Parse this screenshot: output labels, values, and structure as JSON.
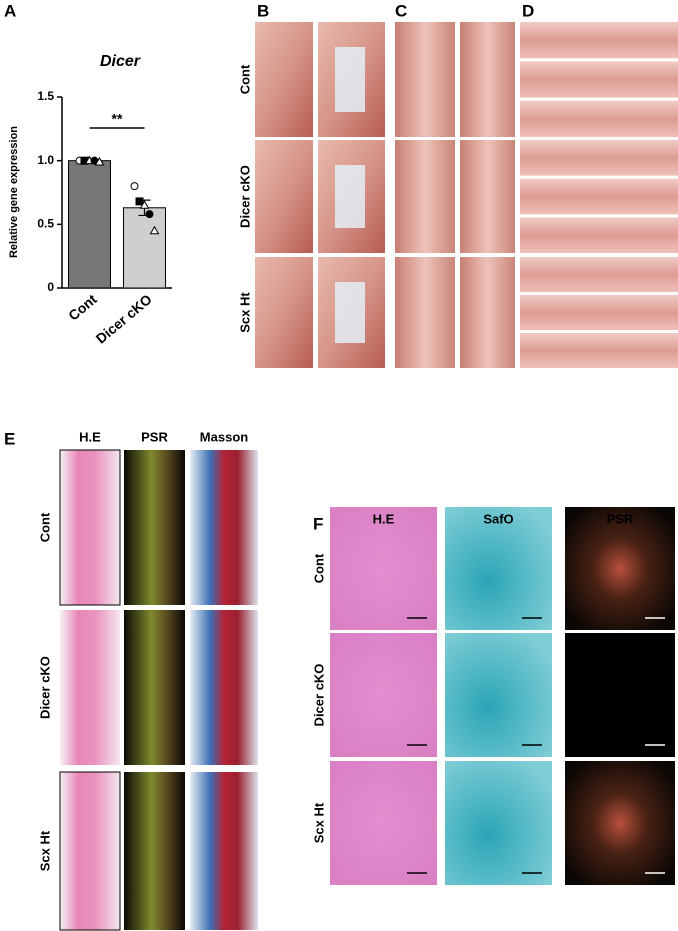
{
  "chart_data": {
    "type": "bar",
    "panel_label": "A",
    "title": "Dicer",
    "y_label": "Relative gene expression",
    "categories": [
      "Cont",
      "Dicer cKO"
    ],
    "values": [
      1.0,
      0.63
    ],
    "errors": [
      0.005,
      0.06
    ],
    "colors": [
      "#777777",
      "#cfcfcf"
    ],
    "points": [
      [
        1.0,
        1.0,
        1.0,
        1.0,
        0.99
      ],
      [
        0.8,
        0.68,
        0.65,
        0.58,
        0.45
      ]
    ],
    "significance": "**",
    "ylim": [
      0,
      1.5
    ],
    "yticks": [
      0,
      0.5,
      {
        "value": 1,
        "label": "1.0"
      },
      1.5
    ]
  },
  "panels": [
    {
      "label": "B",
      "rows": [
        "Cont",
        "Dicer cKO",
        "Scx Ht"
      ]
    },
    {
      "label": "C"
    },
    {
      "label": "D"
    },
    {
      "label": "E",
      "columns": [
        "H.E",
        "PSR",
        "Masson"
      ],
      "rows": [
        "Cont",
        "Dicer cKO",
        "Scx Ht"
      ]
    },
    {
      "label": "F",
      "columns": [
        "H.E",
        "SafO",
        "PSR"
      ],
      "rows": [
        "Cont",
        "Dicer cKO",
        "Scx Ht"
      ]
    }
  ]
}
